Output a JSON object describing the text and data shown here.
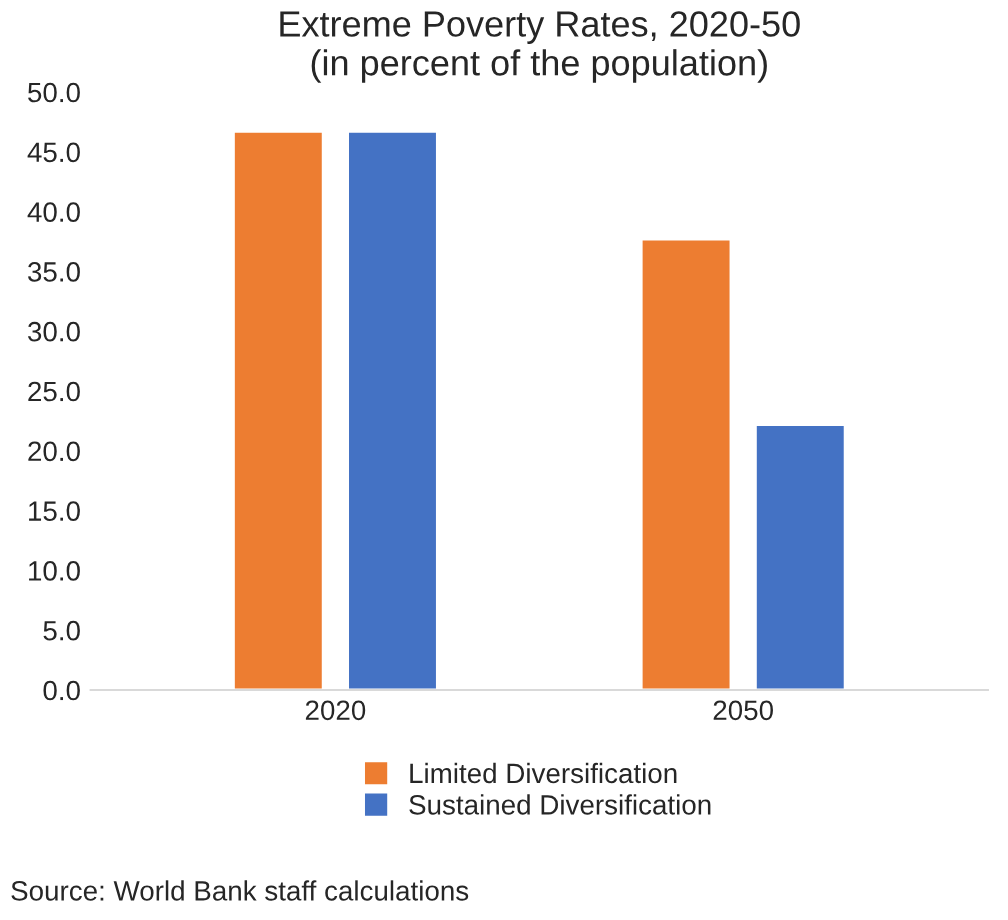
{
  "chart_data": {
    "type": "bar",
    "title": "Extreme Poverty Rates, 2020-50\n(in percent of the population)",
    "categories": [
      "2020",
      "2050"
    ],
    "series": [
      {
        "name": "Limited Diversification",
        "color": "#ed7d31",
        "values": [
          46.7,
          37.7
        ]
      },
      {
        "name": "Sustained Diversification",
        "color": "#4472c4",
        "values": [
          46.7,
          22.2
        ]
      }
    ],
    "ylim": [
      0,
      50
    ],
    "yticks": [
      {
        "value": 0,
        "label": "0.0"
      },
      {
        "value": 5,
        "label": "5.0"
      },
      {
        "value": 10,
        "label": "10.0"
      },
      {
        "value": 15,
        "label": "15.0"
      },
      {
        "value": 20,
        "label": "20.0"
      },
      {
        "value": 25,
        "label": "25.0"
      },
      {
        "value": 30,
        "label": "30.0"
      },
      {
        "value": 35,
        "label": "35.0"
      },
      {
        "value": 40,
        "label": "40.0"
      },
      {
        "value": 45,
        "label": "45.0"
      },
      {
        "value": 50,
        "label": "50.0"
      }
    ],
    "grid": false,
    "legend": "bottom",
    "annotations": [
      "Source: World Bank staff calculations"
    ]
  }
}
